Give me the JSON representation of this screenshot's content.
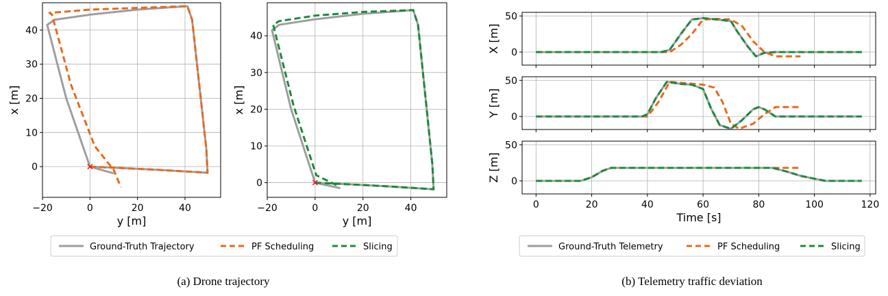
{
  "captions": {
    "a": "(a) Drone trajectory",
    "b": "(b) Telemetry traffic deviation"
  },
  "colors": {
    "gt": "#9e9e9e",
    "pf": "#e66a1c",
    "sl": "#1a8a3c",
    "marker": "#e0201b"
  },
  "chart_data": [
    {
      "type": "line",
      "panel": "a-left",
      "xlabel": "y [m]",
      "ylabel": "x [m]",
      "xlim": [
        -20,
        55
      ],
      "ylim": [
        -9,
        48
      ],
      "xticks": [
        -20,
        0,
        20,
        40
      ],
      "yticks": [
        0,
        10,
        20,
        30,
        40
      ],
      "grid": true,
      "start_marker": {
        "x": 0,
        "y": 0,
        "symbol": "x"
      },
      "series": [
        {
          "name": "Ground-Truth Trajectory",
          "style": "solid",
          "x": [
            0,
            10,
            30,
            49.5,
            49,
            43,
            41,
            20,
            0,
            -15,
            -18,
            -10,
            0,
            10
          ],
          "y": [
            0,
            -0.3,
            -1,
            -1.8,
            5,
            43,
            47,
            46,
            44.5,
            43,
            41.5,
            20,
            0,
            -2
          ]
        },
        {
          "name": "PF Scheduling",
          "style": "dashed",
          "x": [
            0,
            10,
            30,
            49.5,
            49,
            43,
            41,
            20,
            0,
            -17,
            -16,
            -8,
            2,
            10,
            13
          ],
          "y": [
            0,
            -0.3,
            -1,
            -1.8,
            5,
            43,
            47,
            46.5,
            46,
            45,
            44.5,
            24,
            6,
            -1,
            -6
          ]
        }
      ]
    },
    {
      "type": "line",
      "panel": "a-right",
      "xlabel": "y [m]",
      "ylabel": "x [m]",
      "xlim": [
        -20,
        55
      ],
      "ylim": [
        -4,
        49
      ],
      "xticks": [
        -20,
        0,
        20,
        40
      ],
      "yticks": [
        0,
        10,
        20,
        30,
        40
      ],
      "grid": true,
      "start_marker": {
        "x": 0,
        "y": 0,
        "symbol": "x"
      },
      "series": [
        {
          "name": "Ground-Truth Trajectory",
          "style": "solid",
          "x": [
            0,
            10,
            30,
            49.5,
            49,
            43,
            41,
            20,
            0,
            -15,
            -18,
            -10,
            0,
            10.5
          ],
          "y": [
            0,
            -0.3,
            -1,
            -1.8,
            5,
            43,
            47,
            46,
            44.5,
            43,
            41.5,
            20,
            0,
            -1.5
          ]
        },
        {
          "name": "Slicing",
          "style": "dashed",
          "x": [
            0,
            10,
            30,
            49.5,
            49,
            43,
            41,
            20,
            0,
            -15,
            -17.5,
            -9,
            0.5,
            10
          ],
          "y": [
            0,
            -0.3,
            -1,
            -1.8,
            5,
            43,
            47,
            46.5,
            45.5,
            44,
            43,
            21,
            2,
            -1
          ]
        }
      ]
    },
    {
      "type": "line",
      "panel": "b-X",
      "ylabel": "X [m]",
      "xlim": [
        -5,
        122
      ],
      "ylim": [
        -18,
        55
      ],
      "yticks": [
        0,
        50
      ],
      "xticks": [
        0,
        20,
        40,
        60,
        80,
        100,
        120
      ],
      "grid": true,
      "series": [
        {
          "name": "Ground-Truth Telemetry",
          "style": "solid",
          "x": [
            0,
            45,
            48,
            52,
            56,
            60,
            65,
            70,
            72,
            76,
            79,
            82,
            86,
            117
          ],
          "y": [
            0,
            0,
            3,
            25,
            45,
            47,
            45,
            43,
            30,
            8,
            -6,
            -1,
            0,
            0
          ]
        },
        {
          "name": "PF Scheduling",
          "style": "dashed",
          "x": [
            0,
            48,
            52,
            56,
            60,
            65,
            70,
            74,
            78,
            82,
            86,
            95
          ],
          "y": [
            0,
            0,
            10,
            25,
            45,
            46,
            45,
            36,
            15,
            0,
            -6,
            -6
          ]
        },
        {
          "name": "Slicing",
          "style": "dashed",
          "x": [
            0,
            45,
            48,
            52,
            56,
            60,
            65,
            70,
            72,
            76,
            79,
            82,
            86,
            117
          ],
          "y": [
            0,
            0,
            3,
            25,
            45,
            47,
            45,
            43,
            30,
            8,
            -6,
            -1,
            0,
            0
          ]
        }
      ]
    },
    {
      "type": "line",
      "panel": "b-Y",
      "ylabel": "Y [m]",
      "xlim": [
        -5,
        122
      ],
      "ylim": [
        -18,
        55
      ],
      "yticks": [
        0,
        50
      ],
      "xticks": [
        0,
        20,
        40,
        60,
        80,
        100,
        120
      ],
      "grid": true,
      "series": [
        {
          "name": "Ground-Truth Telemetry",
          "style": "solid",
          "x": [
            0,
            38,
            40,
            43,
            47,
            52,
            56,
            60,
            63,
            66,
            70,
            74,
            78,
            80,
            82,
            86,
            117
          ],
          "y": [
            0,
            0,
            3,
            25,
            48,
            45,
            44,
            38,
            10,
            -12,
            -17,
            -5,
            10,
            13,
            10,
            0,
            0
          ]
        },
        {
          "name": "PF Scheduling",
          "style": "dashed",
          "x": [
            0,
            40,
            44,
            48,
            54,
            60,
            64,
            67,
            70,
            73,
            78,
            82,
            86,
            95
          ],
          "y": [
            0,
            0,
            20,
            48,
            46,
            44,
            40,
            20,
            -10,
            -17,
            -10,
            3,
            13,
            13
          ]
        },
        {
          "name": "Slicing",
          "style": "dashed",
          "x": [
            0,
            38,
            40,
            43,
            47,
            52,
            56,
            60,
            63,
            66,
            70,
            74,
            78,
            80,
            82,
            86,
            117
          ],
          "y": [
            0,
            0,
            3,
            25,
            48,
            45,
            44,
            38,
            10,
            -12,
            -17,
            -5,
            10,
            13,
            10,
            0,
            0
          ]
        }
      ]
    },
    {
      "type": "line",
      "panel": "b-Z",
      "ylabel": "Z [m]",
      "xlabel": "Time [s]",
      "xlim": [
        -5,
        122
      ],
      "ylim": [
        -18,
        55
      ],
      "yticks": [
        0,
        50
      ],
      "xticks": [
        0,
        20,
        40,
        60,
        80,
        100,
        120
      ],
      "xticklabels": [
        "0",
        "20",
        "40",
        "60",
        "80",
        "100",
        "120"
      ],
      "grid": true,
      "series": [
        {
          "name": "Ground-Truth Telemetry",
          "style": "solid",
          "x": [
            0,
            16,
            20,
            24,
            27,
            50,
            60,
            85,
            90,
            95,
            100,
            104,
            117
          ],
          "y": [
            0,
            0,
            5,
            14,
            18,
            18,
            18,
            18,
            13,
            7,
            3,
            0,
            0
          ]
        },
        {
          "name": "PF Scheduling",
          "style": "dashed",
          "x": [
            0,
            16,
            20,
            24,
            27,
            50,
            60,
            85,
            95
          ],
          "y": [
            0,
            0,
            5,
            14,
            18,
            18,
            18,
            18,
            18
          ]
        },
        {
          "name": "Slicing",
          "style": "dashed",
          "x": [
            0,
            16,
            20,
            24,
            27,
            50,
            60,
            85,
            90,
            95,
            100,
            104,
            117
          ],
          "y": [
            0,
            0,
            5,
            14,
            18,
            18,
            18,
            18,
            13,
            7,
            3,
            0,
            0
          ]
        }
      ]
    }
  ],
  "legends": {
    "a": [
      "Ground-Truth Trajectory",
      "PF Scheduling",
      "Slicing"
    ],
    "b": [
      "Ground-Truth Telemetry",
      "PF Scheduling",
      "Slicing"
    ]
  }
}
